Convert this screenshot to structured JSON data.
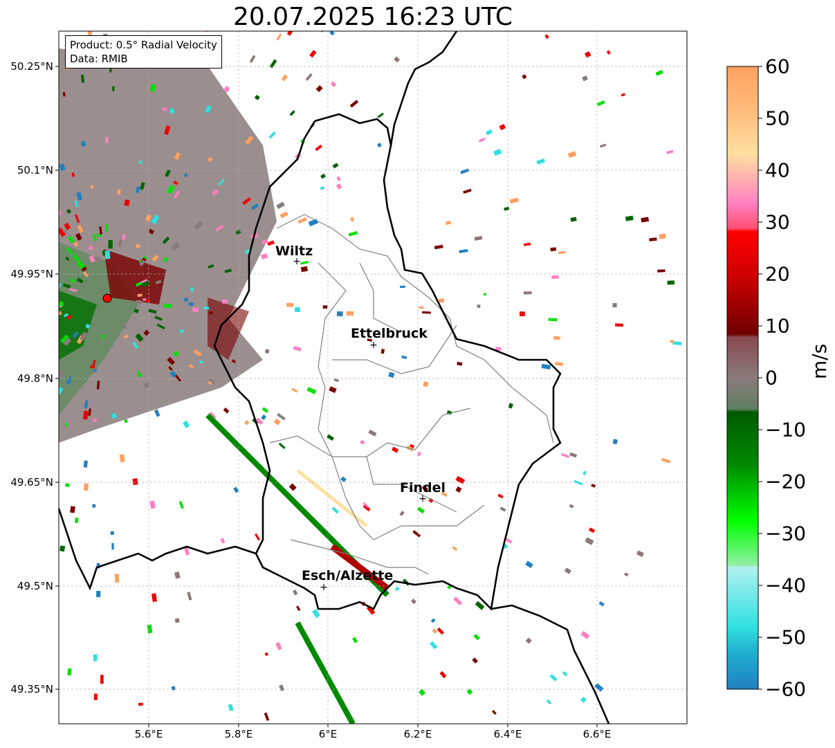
{
  "title": "20.07.2025 16:23 UTC",
  "info_box": {
    "product": "Product: 0.5° Radial Velocity",
    "data": "Data: RMIB"
  },
  "axes": {
    "lon_ticks": [
      "5.6°E",
      "5.8°E",
      "6°E",
      "6.2°E",
      "6.4°E",
      "6.6°E"
    ],
    "lat_ticks": [
      "50.25°N",
      "50.1°N",
      "49.95°N",
      "49.8°N",
      "49.65°N",
      "49.5°N",
      "49.35°N"
    ]
  },
  "cities": [
    {
      "name": "Wiltz",
      "lon": 5.93,
      "lat": 49.966
    },
    {
      "name": "Ettelbruck",
      "lon": 6.1,
      "lat": 49.848
    },
    {
      "name": "Findel",
      "lon": 6.21,
      "lat": 49.627
    },
    {
      "name": "Esch/Alzette",
      "lon": 5.99,
      "lat": 49.497
    }
  ],
  "radar_site": {
    "lon": 5.505,
    "lat": 49.915,
    "color": "#ff0000"
  },
  "colorbar": {
    "ticks": [
      "60",
      "50",
      "40",
      "30",
      "20",
      "10",
      "0",
      "−10",
      "−20",
      "−30",
      "−40",
      "−50",
      "−60"
    ],
    "unit": "m/s",
    "min": -60,
    "max": 60
  },
  "colors": {
    "positive_high": "#ffa060",
    "positive_pink": "#ff80c0",
    "positive_red": "#ee0000",
    "positive_darkred": "#7a0000",
    "zero_gray": "#8a7a7a",
    "negative_darkgreen": "#006400",
    "negative_green": "#00e000",
    "negative_cyan": "#30e0e0",
    "negative_blue": "#2080c0"
  }
}
